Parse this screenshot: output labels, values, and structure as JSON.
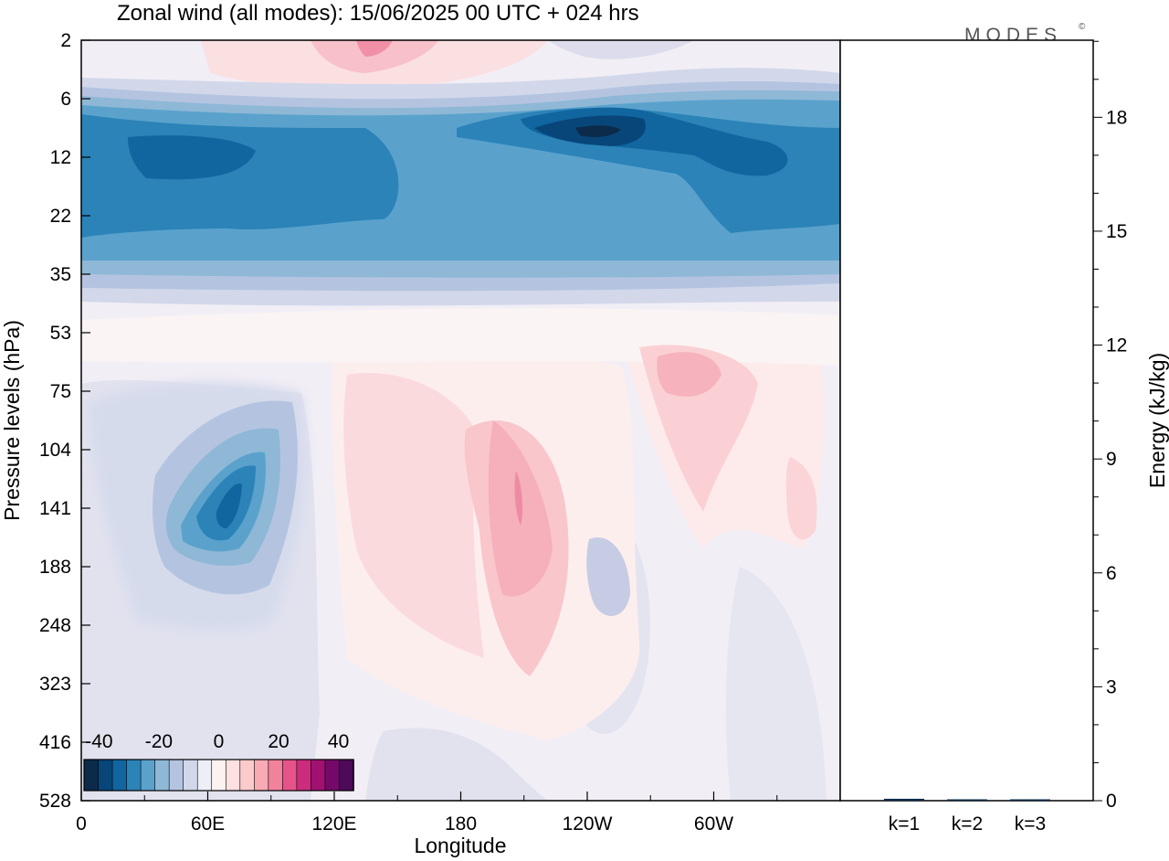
{
  "chart_data": [
    {
      "type": "heatmap",
      "title": "Zonal wind (all modes):  15/06/2025  00 UTC  + 024 hrs",
      "xlabel": "Longitude",
      "ylabel": "Pressure levels (hPa)",
      "x_ticks": [
        "0",
        "60E",
        "120E",
        "180",
        "120W",
        "60W"
      ],
      "x_tick_positions_deg": [
        0,
        60,
        120,
        180,
        240,
        300
      ],
      "x_range_deg": [
        0,
        360
      ],
      "y_ticks": [
        "2",
        "6",
        "12",
        "22",
        "35",
        "53",
        "75",
        "104",
        "141",
        "188",
        "248",
        "323",
        "416",
        "528"
      ],
      "y_scale": "log-pressure (top 2 hPa, bottom 528 hPa)",
      "colorbar": {
        "tick_labels": [
          "-40",
          "-20",
          "0",
          "20",
          "40"
        ],
        "min": -45,
        "max": 45,
        "step": 5,
        "colors": [
          "#0c2b4a",
          "#08467a",
          "#1166a0",
          "#2b83b8",
          "#5aa2cc",
          "#8eb8d6",
          "#b4c4e0",
          "#d2d8ea",
          "#eeeef6",
          "#fdf2f2",
          "#fde0e0",
          "#fbcacd",
          "#f8aab5",
          "#f1829b",
          "#e6538a",
          "#cc2c7e",
          "#a11172",
          "#74096a",
          "#4c0a59"
        ]
      },
      "features": [
        {
          "name": "stratospheric easterly band",
          "lon_range": [
            0,
            360
          ],
          "p_range_hPa": [
            6,
            35
          ],
          "u_min_ms": -30
        },
        {
          "name": "easterly maximum",
          "lon": 245,
          "p_hPa": 9,
          "u_ms": -40
        },
        {
          "name": "upper tropospheric easterly jet",
          "lon": 70,
          "p_hPa": 141,
          "u_ms": -25
        },
        {
          "name": "westerly maximum",
          "lon": 200,
          "p_hPa": 141,
          "u_ms": 15
        },
        {
          "name": "westerly patch",
          "lon": 290,
          "p_hPa": 85,
          "u_ms": 10
        },
        {
          "name": "upper westerlies",
          "lon": 130,
          "p_hPa": 2.5,
          "u_ms": 15
        }
      ]
    },
    {
      "type": "bar",
      "ylabel": "Energy (kJ/kg)",
      "ylim": [
        0,
        20
      ],
      "y_ticks": [
        "0",
        "3",
        "6",
        "9",
        "12",
        "15",
        "18"
      ],
      "categories": [
        "k=1",
        "k=2",
        "k=3"
      ],
      "values": [
        0.05,
        0.03,
        0.01
      ],
      "bar_color": "#0c2b4a"
    }
  ],
  "logo": "MODES",
  "logo_mark": "©"
}
